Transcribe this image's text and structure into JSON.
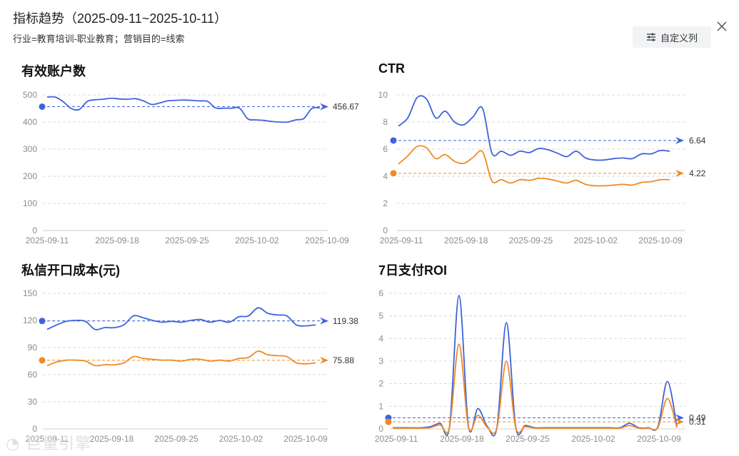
{
  "header": {
    "title": "指标趋势（2025-09-11~2025-10-11）",
    "filters": "行业=教育培训-职业教育；营销目的=线索",
    "custom_columns_label": "自定义列"
  },
  "watermark": "巨量引擎",
  "colors": {
    "blue": "#3d63dd",
    "orange": "#f08a24",
    "grid": "#d9d9d9"
  },
  "chart_data": [
    {
      "type": "line",
      "title": "有效账户数",
      "x_ticks": [
        "2025-09-11",
        "2025-09-18",
        "2025-09-25",
        "2025-10-02",
        "2025-10-09"
      ],
      "ylim": [
        0,
        500
      ],
      "y_ticks": [
        0,
        100,
        200,
        300,
        400,
        500
      ],
      "series": [
        {
          "color": "#3d63dd",
          "values": [
            492,
            492,
            475,
            450,
            446,
            476,
            482,
            484,
            488,
            485,
            484,
            486,
            478,
            465,
            470,
            478,
            480,
            481,
            480,
            478,
            476,
            452,
            451,
            451,
            451,
            412,
            408,
            406,
            402,
            400,
            400,
            408,
            413,
            450,
            452
          ],
          "reference": 456.67,
          "reference_label": "456.67"
        }
      ]
    },
    {
      "type": "line",
      "title": "CTR",
      "x_ticks": [
        "2025-09-11",
        "2025-09-18",
        "2025-09-25",
        "2025-10-02",
        "2025-10-09"
      ],
      "ylim": [
        0,
        10
      ],
      "y_ticks": [
        0,
        2,
        4,
        6,
        8,
        10
      ],
      "series": [
        {
          "color": "#3d63dd",
          "values": [
            7.7,
            8.3,
            9.8,
            9.7,
            8.3,
            8.8,
            8.0,
            7.8,
            8.4,
            9.0,
            5.7,
            5.85,
            5.55,
            5.85,
            5.75,
            6.05,
            5.95,
            5.7,
            5.45,
            5.85,
            5.35,
            5.2,
            5.2,
            5.3,
            5.35,
            5.3,
            5.65,
            5.65,
            5.9,
            5.85
          ],
          "reference": 6.64,
          "reference_label": "6.64"
        },
        {
          "color": "#f08a24",
          "values": [
            4.9,
            5.5,
            6.2,
            6.1,
            5.3,
            5.6,
            5.1,
            4.95,
            5.4,
            5.8,
            3.65,
            3.75,
            3.5,
            3.75,
            3.7,
            3.85,
            3.8,
            3.65,
            3.5,
            3.7,
            3.4,
            3.3,
            3.3,
            3.35,
            3.4,
            3.35,
            3.55,
            3.6,
            3.75,
            3.75
          ],
          "reference": 4.22,
          "reference_label": "4.22"
        }
      ]
    },
    {
      "type": "line",
      "title": "私信开口成本(元)",
      "x_ticks": [
        "2025-09-11",
        "2025-09-18",
        "2025-09-25",
        "2025-10-02",
        "2025-10-09"
      ],
      "ylim": [
        0,
        150
      ],
      "y_ticks": [
        0,
        30,
        60,
        90,
        120,
        150
      ],
      "series": [
        {
          "color": "#3d63dd",
          "values": [
            110,
            115,
            119,
            120,
            119,
            110,
            112,
            112,
            115,
            125,
            123,
            120,
            118,
            119,
            118,
            120,
            121,
            118,
            120,
            118,
            124,
            125,
            134,
            128,
            126,
            125,
            115,
            114,
            115
          ],
          "reference": 119.38,
          "reference_label": "119.38"
        },
        {
          "color": "#f08a24",
          "values": [
            70,
            74,
            76,
            76,
            75,
            70,
            71,
            71,
            73,
            80,
            78,
            77,
            76,
            76,
            75,
            77,
            77,
            75,
            76,
            75,
            78,
            79,
            86,
            82,
            81,
            80,
            73,
            72,
            73
          ],
          "reference": 75.88,
          "reference_label": "75.88"
        }
      ]
    },
    {
      "type": "line",
      "title": "7日支付ROI",
      "x_ticks": [
        "2025-09-11",
        "2025-09-18",
        "2025-09-25",
        "2025-10-02",
        "2025-10-09"
      ],
      "ylim": [
        0,
        6
      ],
      "y_ticks": [
        0,
        1,
        2,
        3,
        4,
        5,
        6
      ],
      "series": [
        {
          "color": "#3d63dd",
          "values": [
            0.05,
            0.05,
            0.05,
            0.05,
            0.1,
            0.25,
            0.1,
            5.9,
            0.1,
            0.9,
            0.1,
            0.05,
            4.7,
            0.05,
            0.15,
            0.05,
            0.05,
            0.05,
            0.05,
            0.05,
            0.05,
            0.05,
            0.05,
            0.05,
            0.05,
            0.25,
            0.05,
            0.05,
            0.1,
            2.1,
            0.1
          ],
          "reference": 0.49,
          "reference_label": "0.49"
        },
        {
          "color": "#f08a24",
          "values": [
            0.03,
            0.03,
            0.03,
            0.03,
            0.06,
            0.18,
            0.06,
            3.75,
            0.06,
            0.6,
            0.06,
            0.03,
            3.0,
            0.03,
            0.1,
            0.03,
            0.03,
            0.03,
            0.03,
            0.03,
            0.03,
            0.03,
            0.03,
            0.03,
            0.03,
            0.15,
            0.03,
            0.03,
            0.06,
            1.35,
            0.06
          ],
          "reference": 0.31,
          "reference_label": "0.31"
        }
      ]
    }
  ]
}
